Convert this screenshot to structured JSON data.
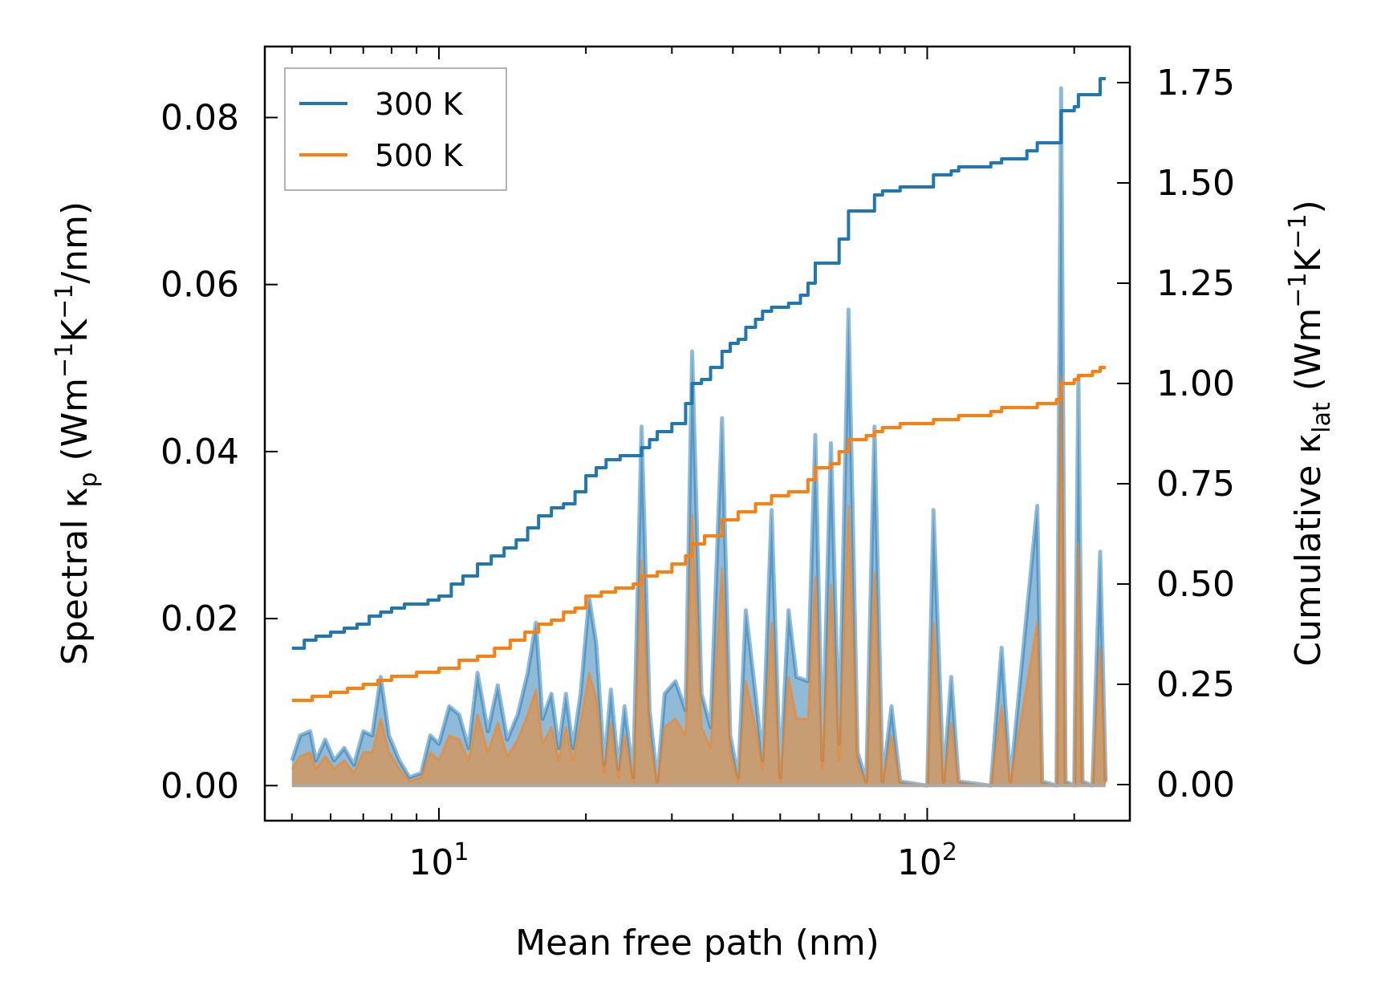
{
  "chart_data": {
    "type": "line",
    "x_scale": "log",
    "xlim": [
      4.4,
      260
    ],
    "xlabel": "Mean free path (nm)",
    "x_ticks": [
      10,
      100
    ],
    "x_tick_labels": [
      {
        "base": "10",
        "exp": "1"
      },
      {
        "base": "10",
        "exp": "2"
      }
    ],
    "y_left": {
      "label": {
        "prefix": "Spectral κ",
        "sub": "p",
        "units": " (Wm",
        "sup1": "−1",
        "mid": "K",
        "sup2": "−1",
        "suffix": "/nm)"
      },
      "ylim": [
        -0.0042,
        0.0885
      ],
      "ticks": [
        0.0,
        0.02,
        0.04,
        0.06,
        0.08
      ],
      "tick_labels": [
        "0.00",
        "0.02",
        "0.04",
        "0.06",
        "0.08"
      ]
    },
    "y_right": {
      "label": {
        "prefix": "Cumulative κ",
        "sub": "lat",
        "units": " (Wm",
        "sup1": "−1",
        "mid": "K",
        "sup2": "−1",
        "suffix": ")"
      },
      "ylim": [
        -0.09,
        1.84
      ],
      "ticks": [
        0.0,
        0.25,
        0.5,
        0.75,
        1.0,
        1.25,
        1.5,
        1.75
      ],
      "tick_labels": [
        "0.00",
        "0.25",
        "0.50",
        "0.75",
        "1.00",
        "1.25",
        "1.50",
        "1.75"
      ]
    },
    "legend": {
      "placement": "top-left",
      "entries": [
        "300 K",
        "500 K"
      ]
    },
    "colors": {
      "300 K": "#1f77b4",
      "500 K": "#ff7f0e"
    },
    "spectral_300K": [
      [
        5.0,
        0.003
      ],
      [
        5.2,
        0.006
      ],
      [
        5.45,
        0.0065
      ],
      [
        5.6,
        0.003
      ],
      [
        5.85,
        0.0055
      ],
      [
        6.1,
        0.003
      ],
      [
        6.4,
        0.0045
      ],
      [
        6.7,
        0.0025
      ],
      [
        7.0,
        0.0065
      ],
      [
        7.3,
        0.006
      ],
      [
        7.6,
        0.013
      ],
      [
        7.9,
        0.006
      ],
      [
        8.3,
        0.003
      ],
      [
        8.7,
        0.001
      ],
      [
        9.2,
        0.0015
      ],
      [
        9.6,
        0.006
      ],
      [
        10.0,
        0.005
      ],
      [
        10.5,
        0.0095
      ],
      [
        11.0,
        0.0085
      ],
      [
        11.5,
        0.0045
      ],
      [
        12.0,
        0.0135
      ],
      [
        12.6,
        0.0065
      ],
      [
        13.2,
        0.012
      ],
      [
        13.8,
        0.0055
      ],
      [
        14.5,
        0.0085
      ],
      [
        15.2,
        0.0135
      ],
      [
        15.8,
        0.0195
      ],
      [
        16.3,
        0.008
      ],
      [
        17.0,
        0.011
      ],
      [
        17.6,
        0.0045
      ],
      [
        18.2,
        0.011
      ],
      [
        18.8,
        0.0045
      ],
      [
        19.5,
        0.011
      ],
      [
        20.3,
        0.0225
      ],
      [
        21.0,
        0.017
      ],
      [
        21.8,
        0.0025
      ],
      [
        22.5,
        0.0115
      ],
      [
        23.3,
        0.002
      ],
      [
        24.0,
        0.0095
      ],
      [
        25.0,
        0.001
      ],
      [
        26.0,
        0.043
      ],
      [
        27.0,
        0.009
      ],
      [
        28.0,
        0.0005
      ],
      [
        29.0,
        0.011
      ],
      [
        30.5,
        0.0125
      ],
      [
        32.0,
        0.009
      ],
      [
        33.0,
        0.052
      ],
      [
        34.5,
        0.011
      ],
      [
        36.0,
        0.007
      ],
      [
        38.0,
        0.044
      ],
      [
        39.5,
        0.006
      ],
      [
        41.0,
        0.001
      ],
      [
        42.5,
        0.021
      ],
      [
        44.5,
        0.011
      ],
      [
        46.0,
        0.003
      ],
      [
        48.0,
        0.033
      ],
      [
        50.0,
        0.001
      ],
      [
        52.0,
        0.021
      ],
      [
        54.0,
        0.013
      ],
      [
        57.0,
        0.0125
      ],
      [
        59.0,
        0.042
      ],
      [
        61.0,
        0.003
      ],
      [
        63.5,
        0.041
      ],
      [
        66.0,
        0.005
      ],
      [
        69.0,
        0.057
      ],
      [
        72.0,
        0.004
      ],
      [
        75.0,
        0.0005
      ],
      [
        78.0,
        0.043
      ],
      [
        81.0,
        0.0005
      ],
      [
        84.5,
        0.0095
      ],
      [
        88.0,
        0.0005
      ],
      [
        100.0,
        0.0
      ],
      [
        103.0,
        0.033
      ],
      [
        108.0,
        0.0005
      ],
      [
        112.0,
        0.013
      ],
      [
        116.0,
        0.0005
      ],
      [
        135.0,
        0.0
      ],
      [
        142.0,
        0.0165
      ],
      [
        148.0,
        0.0005
      ],
      [
        168.0,
        0.0335
      ],
      [
        172.0,
        0.0005
      ],
      [
        184.0,
        0.0
      ],
      [
        188.0,
        0.0835
      ],
      [
        192.0,
        0.0005
      ],
      [
        200.0,
        0.0
      ],
      [
        204.0,
        0.049
      ],
      [
        208.0,
        0.0005
      ],
      [
        218.0,
        0.0
      ],
      [
        226.0,
        0.028
      ],
      [
        232.0,
        0.0005
      ]
    ],
    "spectral_500K": [
      [
        5.0,
        0.002
      ],
      [
        5.2,
        0.0035
      ],
      [
        5.45,
        0.004
      ],
      [
        5.6,
        0.002
      ],
      [
        5.85,
        0.0035
      ],
      [
        6.1,
        0.002
      ],
      [
        6.4,
        0.003
      ],
      [
        6.7,
        0.0015
      ],
      [
        7.0,
        0.004
      ],
      [
        7.3,
        0.004
      ],
      [
        7.6,
        0.008
      ],
      [
        7.9,
        0.004
      ],
      [
        8.3,
        0.002
      ],
      [
        8.7,
        0.0005
      ],
      [
        9.2,
        0.001
      ],
      [
        9.6,
        0.004
      ],
      [
        10.0,
        0.003
      ],
      [
        10.5,
        0.006
      ],
      [
        11.0,
        0.0055
      ],
      [
        11.5,
        0.003
      ],
      [
        12.0,
        0.0085
      ],
      [
        12.6,
        0.004
      ],
      [
        13.2,
        0.0075
      ],
      [
        13.8,
        0.0035
      ],
      [
        14.5,
        0.0055
      ],
      [
        15.2,
        0.0085
      ],
      [
        15.8,
        0.0115
      ],
      [
        16.3,
        0.005
      ],
      [
        17.0,
        0.007
      ],
      [
        17.6,
        0.003
      ],
      [
        18.2,
        0.007
      ],
      [
        18.8,
        0.003
      ],
      [
        19.5,
        0.0075
      ],
      [
        20.3,
        0.0135
      ],
      [
        21.0,
        0.0105
      ],
      [
        21.8,
        0.0015
      ],
      [
        22.5,
        0.0075
      ],
      [
        23.3,
        0.001
      ],
      [
        24.0,
        0.006
      ],
      [
        25.0,
        0.0005
      ],
      [
        26.0,
        0.027
      ],
      [
        27.0,
        0.0055
      ],
      [
        28.0,
        0.0003
      ],
      [
        29.0,
        0.007
      ],
      [
        30.5,
        0.008
      ],
      [
        32.0,
        0.006
      ],
      [
        33.0,
        0.0325
      ],
      [
        34.5,
        0.007
      ],
      [
        36.0,
        0.0045
      ],
      [
        38.0,
        0.026
      ],
      [
        39.5,
        0.004
      ],
      [
        41.0,
        0.0005
      ],
      [
        42.5,
        0.0125
      ],
      [
        44.5,
        0.007
      ],
      [
        46.0,
        0.002
      ],
      [
        48.0,
        0.0195
      ],
      [
        50.0,
        0.0005
      ],
      [
        52.0,
        0.013
      ],
      [
        54.0,
        0.008
      ],
      [
        57.0,
        0.008
      ],
      [
        59.0,
        0.025
      ],
      [
        61.0,
        0.002
      ],
      [
        63.5,
        0.024
      ],
      [
        66.0,
        0.003
      ],
      [
        69.0,
        0.0335
      ],
      [
        72.0,
        0.0025
      ],
      [
        75.0,
        0.0003
      ],
      [
        78.0,
        0.0255
      ],
      [
        81.0,
        0.0003
      ],
      [
        84.5,
        0.006
      ],
      [
        88.0,
        0.0003
      ],
      [
        100.0,
        0.0
      ],
      [
        103.0,
        0.0195
      ],
      [
        108.0,
        0.0003
      ],
      [
        112.0,
        0.0075
      ],
      [
        116.0,
        0.0003
      ],
      [
        135.0,
        0.0
      ],
      [
        142.0,
        0.0095
      ],
      [
        148.0,
        0.0003
      ],
      [
        168.0,
        0.0195
      ],
      [
        172.0,
        0.0003
      ],
      [
        184.0,
        0.0
      ],
      [
        188.0,
        0.049
      ],
      [
        192.0,
        0.0003
      ],
      [
        200.0,
        0.0
      ],
      [
        204.0,
        0.029
      ],
      [
        208.0,
        0.0003
      ],
      [
        218.0,
        0.0
      ],
      [
        226.0,
        0.0165
      ],
      [
        232.0,
        0.0003
      ]
    ],
    "cumulative_300K": [
      [
        5.0,
        0.34
      ],
      [
        5.3,
        0.36
      ],
      [
        5.6,
        0.37
      ],
      [
        6.0,
        0.38
      ],
      [
        6.4,
        0.39
      ],
      [
        6.8,
        0.4
      ],
      [
        7.2,
        0.42
      ],
      [
        7.6,
        0.43
      ],
      [
        8.0,
        0.44
      ],
      [
        8.5,
        0.45
      ],
      [
        9.0,
        0.45
      ],
      [
        9.5,
        0.46
      ],
      [
        10.0,
        0.47
      ],
      [
        10.6,
        0.5
      ],
      [
        11.2,
        0.52
      ],
      [
        12.0,
        0.55
      ],
      [
        12.8,
        0.57
      ],
      [
        13.6,
        0.59
      ],
      [
        14.4,
        0.61
      ],
      [
        15.2,
        0.64
      ],
      [
        16.0,
        0.67
      ],
      [
        17.0,
        0.69
      ],
      [
        18.0,
        0.7
      ],
      [
        19.0,
        0.73
      ],
      [
        20.0,
        0.77
      ],
      [
        21.0,
        0.79
      ],
      [
        22.0,
        0.81
      ],
      [
        23.5,
        0.82
      ],
      [
        25.0,
        0.82
      ],
      [
        26.0,
        0.84
      ],
      [
        27.0,
        0.86
      ],
      [
        28.0,
        0.88
      ],
      [
        30.0,
        0.9
      ],
      [
        32.0,
        0.95
      ],
      [
        33.0,
        1.0
      ],
      [
        34.5,
        1.01
      ],
      [
        36.0,
        1.04
      ],
      [
        38.0,
        1.08
      ],
      [
        39.5,
        1.1
      ],
      [
        41.0,
        1.11
      ],
      [
        42.5,
        1.14
      ],
      [
        44.5,
        1.16
      ],
      [
        46.0,
        1.18
      ],
      [
        48.0,
        1.19
      ],
      [
        52.0,
        1.2
      ],
      [
        55.0,
        1.22
      ],
      [
        57.0,
        1.25
      ],
      [
        59.0,
        1.3
      ],
      [
        63.5,
        1.3
      ],
      [
        66.0,
        1.36
      ],
      [
        69.0,
        1.43
      ],
      [
        72.0,
        1.43
      ],
      [
        75.0,
        1.43
      ],
      [
        78.0,
        1.47
      ],
      [
        81.0,
        1.48
      ],
      [
        88.0,
        1.49
      ],
      [
        100.0,
        1.49
      ],
      [
        103.0,
        1.52
      ],
      [
        112.0,
        1.53
      ],
      [
        116.0,
        1.54
      ],
      [
        135.0,
        1.55
      ],
      [
        142.0,
        1.56
      ],
      [
        160.0,
        1.58
      ],
      [
        168.0,
        1.6
      ],
      [
        184.0,
        1.6
      ],
      [
        188.0,
        1.68
      ],
      [
        200.0,
        1.69
      ],
      [
        204.0,
        1.72
      ],
      [
        218.0,
        1.72
      ],
      [
        226.0,
        1.76
      ],
      [
        232.0,
        1.76
      ]
    ],
    "cumulative_500K": [
      [
        5.0,
        0.21
      ],
      [
        5.5,
        0.22
      ],
      [
        6.0,
        0.23
      ],
      [
        6.5,
        0.24
      ],
      [
        7.0,
        0.25
      ],
      [
        7.5,
        0.26
      ],
      [
        8.0,
        0.27
      ],
      [
        9.0,
        0.28
      ],
      [
        10.0,
        0.29
      ],
      [
        11.0,
        0.31
      ],
      [
        12.0,
        0.32
      ],
      [
        13.0,
        0.34
      ],
      [
        14.0,
        0.36
      ],
      [
        15.0,
        0.38
      ],
      [
        16.0,
        0.4
      ],
      [
        17.0,
        0.41
      ],
      [
        18.0,
        0.43
      ],
      [
        19.0,
        0.44
      ],
      [
        20.0,
        0.47
      ],
      [
        21.5,
        0.48
      ],
      [
        23.0,
        0.49
      ],
      [
        25.0,
        0.5
      ],
      [
        26.0,
        0.52
      ],
      [
        28.0,
        0.53
      ],
      [
        30.0,
        0.55
      ],
      [
        32.0,
        0.57
      ],
      [
        33.0,
        0.6
      ],
      [
        35.0,
        0.62
      ],
      [
        38.0,
        0.66
      ],
      [
        41.0,
        0.68
      ],
      [
        44.5,
        0.7
      ],
      [
        48.0,
        0.72
      ],
      [
        52.0,
        0.73
      ],
      [
        57.0,
        0.76
      ],
      [
        59.0,
        0.79
      ],
      [
        63.5,
        0.8
      ],
      [
        66.0,
        0.83
      ],
      [
        69.0,
        0.86
      ],
      [
        75.0,
        0.87
      ],
      [
        78.0,
        0.88
      ],
      [
        81.0,
        0.89
      ],
      [
        88.0,
        0.9
      ],
      [
        100.0,
        0.9
      ],
      [
        103.0,
        0.91
      ],
      [
        116.0,
        0.92
      ],
      [
        135.0,
        0.93
      ],
      [
        142.0,
        0.94
      ],
      [
        168.0,
        0.95
      ],
      [
        184.0,
        0.96
      ],
      [
        188.0,
        1.0
      ],
      [
        200.0,
        1.01
      ],
      [
        204.0,
        1.02
      ],
      [
        218.0,
        1.03
      ],
      [
        226.0,
        1.04
      ],
      [
        232.0,
        1.04
      ]
    ]
  }
}
